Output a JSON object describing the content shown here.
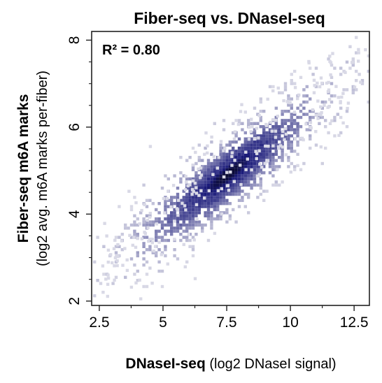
{
  "chart_data": {
    "type": "heatmap",
    "title": "Fiber-seq vs. DNaseI-seq",
    "xlabel": {
      "bold": "DNaseI-seq",
      "normal": " (log2 DNaseI signal)"
    },
    "ylabel": {
      "bold": "Fiber-seq m6A marks",
      "normal": "(log2 avg. m6A marks per-fiber)"
    },
    "annotation": "R² = 0.80",
    "xlim": [
      2.2,
      13.1
    ],
    "ylim": [
      1.9,
      8.2
    ],
    "x_ticks": [
      2.5,
      5,
      7.5,
      10,
      12.5
    ],
    "x_tick_labels": [
      "2.5",
      "5",
      "7.5",
      "10",
      "12.5"
    ],
    "y_ticks": [
      2,
      4,
      6,
      8
    ],
    "y_tick_labels": [
      "2",
      "4",
      "6",
      "8"
    ],
    "density_center": [
      7.5,
      4.95
    ],
    "trend": {
      "slope": 0.455,
      "intercept": 1.54
    },
    "color_low": "#d9d9e6",
    "color_high": "#1b1b7a",
    "color_peak": "#0a0a30"
  }
}
